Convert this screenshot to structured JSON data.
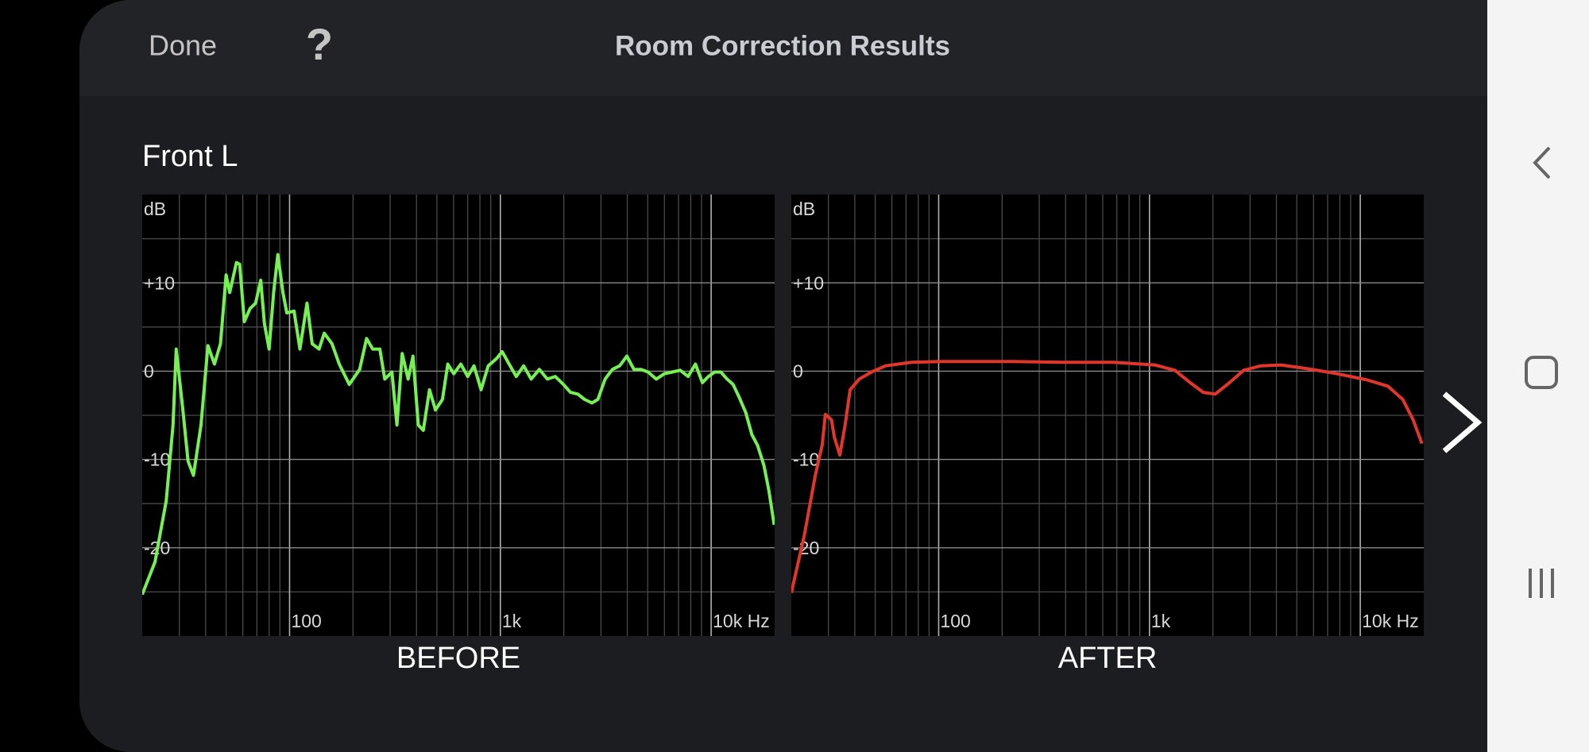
{
  "header": {
    "done": "Done",
    "help": "?",
    "title": "Room Correction Results"
  },
  "channel": "Front L",
  "chart_data": [
    {
      "type": "line",
      "title": "BEFORE",
      "ylabel": "dB",
      "color": "#77f055",
      "xscale": "log",
      "grid": true,
      "xlim": [
        20,
        20000
      ],
      "ylim": [
        -30,
        20
      ],
      "xticks": [
        {
          "value": 100,
          "label": "100"
        },
        {
          "value": 1000,
          "label": "1k"
        },
        {
          "value": 10000,
          "label": "10k Hz"
        }
      ],
      "xminor": [
        30,
        40,
        50,
        60,
        70,
        80,
        90,
        200,
        300,
        400,
        500,
        600,
        700,
        800,
        900,
        2000,
        3000,
        4000,
        5000,
        6000,
        7000,
        8000,
        9000
      ],
      "yticks": [
        {
          "value": 10,
          "label": "+10"
        },
        0,
        -10,
        -20
      ],
      "yminor": [
        -25,
        -15,
        -5,
        5,
        15
      ],
      "x": [
        20,
        23,
        26,
        28,
        29,
        31,
        33,
        35,
        38,
        41,
        44,
        47,
        50,
        52,
        56,
        58,
        61,
        65,
        69,
        73,
        76,
        80,
        84,
        88,
        93,
        97,
        105,
        112,
        121,
        128,
        138,
        146,
        159,
        172,
        192,
        215,
        232,
        248,
        268,
        283,
        306,
        323,
        342,
        365,
        385,
        408,
        431,
        461,
        492,
        531,
        563,
        601,
        649,
        700,
        750,
        810,
        876,
        957,
        1020,
        1100,
        1190,
        1290,
        1400,
        1530,
        1670,
        1820,
        1990,
        2150,
        2330,
        2510,
        2720,
        2900,
        3140,
        3400,
        3680,
        3980,
        4300,
        4650,
        5020,
        5490,
        5990,
        6530,
        7130,
        7770,
        8420,
        9090,
        9700,
        10400,
        11100,
        11900,
        12700,
        13600,
        14600,
        15600,
        16600,
        17800,
        18800,
        19900
      ],
      "values": [
        -25.3,
        -21.6,
        -14.7,
        -6.1,
        2.5,
        -3.8,
        -10.2,
        -11.8,
        -6.1,
        2.9,
        0.8,
        3.1,
        10.9,
        8.9,
        12.3,
        12.1,
        5.6,
        7.1,
        7.7,
        10.3,
        5.4,
        2.5,
        8.9,
        13.2,
        8.9,
        6.6,
        6.8,
        2.5,
        7.7,
        3.1,
        2.5,
        4.3,
        3.1,
        0.8,
        -1.5,
        0.2,
        3.7,
        2.5,
        2.5,
        -0.9,
        -0.1,
        -6.1,
        2.0,
        -0.9,
        1.7,
        -6.1,
        -6.7,
        -2.1,
        -4.4,
        -3.2,
        0.8,
        -0.3,
        0.8,
        -0.6,
        0.6,
        -2.1,
        0.6,
        1.4,
        2.2,
        0.8,
        -0.6,
        0.6,
        -0.9,
        0.2,
        -0.9,
        -0.6,
        -1.5,
        -2.4,
        -2.6,
        -3.2,
        -3.6,
        -3.2,
        -0.9,
        0.2,
        0.6,
        1.7,
        0.2,
        0.2,
        -0.1,
        -0.9,
        -0.3,
        -0.1,
        0.1,
        -0.6,
        0.8,
        -1.3,
        -0.6,
        -0.1,
        -0.1,
        -0.9,
        -1.5,
        -3.0,
        -4.7,
        -7.2,
        -8.4,
        -10.7,
        -13.6,
        -17.4
      ]
    },
    {
      "type": "line",
      "title": "AFTER",
      "ylabel": "dB",
      "color": "#e0362c",
      "xscale": "log",
      "grid": true,
      "xlim": [
        20,
        20000
      ],
      "ylim": [
        -30,
        20
      ],
      "xticks": [
        {
          "value": 100,
          "label": "100"
        },
        {
          "value": 1000,
          "label": "1k"
        },
        {
          "value": 10000,
          "label": "10k Hz"
        }
      ],
      "xminor": [
        30,
        40,
        50,
        60,
        70,
        80,
        90,
        200,
        300,
        400,
        500,
        600,
        700,
        800,
        900,
        2000,
        3000,
        4000,
        5000,
        6000,
        7000,
        8000,
        9000
      ],
      "yticks": [
        {
          "value": 10,
          "label": "+10"
        },
        0,
        -10,
        -20
      ],
      "yminor": [
        -25,
        -15,
        -5,
        5,
        15
      ],
      "x": [
        20,
        23,
        26,
        28,
        29,
        31,
        32,
        34,
        36,
        38,
        42,
        48,
        56,
        74,
        103,
        144,
        224,
        390,
        678,
        1060,
        1320,
        1560,
        1800,
        2050,
        2340,
        2800,
        3370,
        4210,
        5560,
        7770,
        10800,
        13500,
        15900,
        17800,
        19600
      ],
      "values": [
        -25.1,
        -18.7,
        -11.8,
        -8.4,
        -4.9,
        -5.5,
        -7.5,
        -9.5,
        -6.1,
        -2.1,
        -0.9,
        -0.1,
        0.6,
        1.0,
        1.1,
        1.1,
        1.1,
        1.0,
        1.0,
        0.7,
        0.1,
        -1.3,
        -2.4,
        -2.6,
        -1.5,
        0.1,
        0.6,
        0.7,
        0.3,
        -0.3,
        -1.0,
        -1.7,
        -3.2,
        -5.5,
        -8.2
      ]
    }
  ]
}
